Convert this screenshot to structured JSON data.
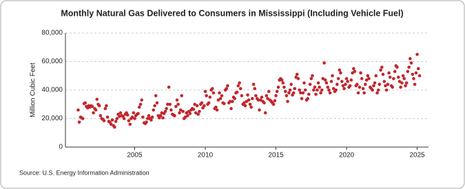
{
  "chart_data": {
    "type": "scatter",
    "title": "Monthly Natural Gas Delivered to Consumers in Mississippi (Including Vehicle Fuel)",
    "y_label": "Million Cubic Feet",
    "source": "Source: U.S. Energy Information Administration",
    "color": "#c1272d",
    "grid": true,
    "xlim": [
      2000.1,
      2025.8
    ],
    "xticks": [
      2005,
      2010,
      2015,
      2020,
      2025
    ],
    "ylim": [
      0,
      80000
    ],
    "yticks": [
      0,
      {
        "value": 20000,
        "label": "20,000"
      },
      {
        "value": 40000,
        "label": "40,000"
      },
      {
        "value": 60000,
        "label": "60,000"
      },
      {
        "value": 80000,
        "label": "80,000"
      }
    ],
    "x": [
      2001,
      2001.08,
      2001.17,
      2001.25,
      2001.33,
      2001.42,
      2001.5,
      2001.58,
      2001.67,
      2001.75,
      2001.83,
      2001.92,
      2002,
      2002.08,
      2002.17,
      2002.25,
      2002.33,
      2002.42,
      2002.5,
      2002.58,
      2002.67,
      2002.75,
      2002.83,
      2002.92,
      2003,
      2003.08,
      2003.17,
      2003.25,
      2003.33,
      2003.42,
      2003.5,
      2003.58,
      2003.67,
      2003.75,
      2003.83,
      2003.92,
      2004,
      2004.08,
      2004.17,
      2004.25,
      2004.33,
      2004.42,
      2004.5,
      2004.58,
      2004.67,
      2004.75,
      2004.83,
      2004.92,
      2005,
      2005.08,
      2005.17,
      2005.25,
      2005.33,
      2005.42,
      2005.5,
      2005.58,
      2005.67,
      2005.75,
      2005.83,
      2005.92,
      2006,
      2006.08,
      2006.17,
      2006.25,
      2006.33,
      2006.42,
      2006.5,
      2006.58,
      2006.67,
      2006.75,
      2006.83,
      2006.92,
      2007,
      2007.08,
      2007.17,
      2007.25,
      2007.33,
      2007.42,
      2007.5,
      2007.58,
      2007.67,
      2007.75,
      2007.83,
      2007.92,
      2008,
      2008.08,
      2008.17,
      2008.25,
      2008.33,
      2008.42,
      2008.5,
      2008.58,
      2008.67,
      2008.75,
      2008.83,
      2008.92,
      2009,
      2009.08,
      2009.17,
      2009.25,
      2009.33,
      2009.42,
      2009.5,
      2009.58,
      2009.67,
      2009.75,
      2009.83,
      2009.92,
      2010,
      2010.08,
      2010.17,
      2010.25,
      2010.33,
      2010.42,
      2010.5,
      2010.58,
      2010.67,
      2010.75,
      2010.83,
      2010.92,
      2011,
      2011.08,
      2011.17,
      2011.25,
      2011.33,
      2011.42,
      2011.5,
      2011.58,
      2011.67,
      2011.75,
      2011.83,
      2011.92,
      2012,
      2012.08,
      2012.17,
      2012.25,
      2012.33,
      2012.42,
      2012.5,
      2012.58,
      2012.67,
      2012.75,
      2012.83,
      2012.92,
      2013,
      2013.08,
      2013.17,
      2013.25,
      2013.33,
      2013.42,
      2013.5,
      2013.58,
      2013.67,
      2013.75,
      2013.83,
      2013.92,
      2014,
      2014.08,
      2014.17,
      2014.25,
      2014.33,
      2014.42,
      2014.5,
      2014.58,
      2014.67,
      2014.75,
      2014.83,
      2014.92,
      2015,
      2015.08,
      2015.17,
      2015.25,
      2015.33,
      2015.42,
      2015.5,
      2015.58,
      2015.67,
      2015.75,
      2015.83,
      2015.92,
      2016,
      2016.08,
      2016.17,
      2016.25,
      2016.33,
      2016.42,
      2016.5,
      2016.58,
      2016.67,
      2016.75,
      2016.83,
      2016.92,
      2017,
      2017.08,
      2017.17,
      2017.25,
      2017.33,
      2017.42,
      2017.5,
      2017.58,
      2017.67,
      2017.75,
      2017.83,
      2017.92,
      2018,
      2018.08,
      2018.17,
      2018.25,
      2018.33,
      2018.42,
      2018.5,
      2018.58,
      2018.67,
      2018.75,
      2018.83,
      2018.92,
      2019,
      2019.08,
      2019.17,
      2019.25,
      2019.33,
      2019.42,
      2019.5,
      2019.58,
      2019.67,
      2019.75,
      2019.83,
      2019.92,
      2020,
      2020.08,
      2020.17,
      2020.25,
      2020.33,
      2020.42,
      2020.5,
      2020.58,
      2020.67,
      2020.75,
      2020.83,
      2020.92,
      2021,
      2021.08,
      2021.17,
      2021.25,
      2021.33,
      2021.42,
      2021.5,
      2021.58,
      2021.67,
      2021.75,
      2021.83,
      2021.92,
      2022,
      2022.08,
      2022.17,
      2022.25,
      2022.33,
      2022.42,
      2022.5,
      2022.58,
      2022.67,
      2022.75,
      2022.83,
      2022.92,
      2023,
      2023.08,
      2023.17,
      2023.25,
      2023.33,
      2023.42,
      2023.5,
      2023.58,
      2023.67,
      2023.75,
      2023.83,
      2023.92,
      2024,
      2024.08,
      2024.17,
      2024.25,
      2024.33,
      2024.42,
      2024.5,
      2024.58,
      2024.67,
      2024.75,
      2024.83,
      2024.92,
      2025,
      2025.08,
      2025.17
    ],
    "values": [
      26000,
      17500,
      21000,
      20500,
      20000,
      30500,
      31000,
      28500,
      27500,
      29000,
      28000,
      29000,
      28500,
      24000,
      27000,
      26000,
      33500,
      30000,
      29000,
      22000,
      20000,
      19500,
      18500,
      27000,
      29000,
      21000,
      18000,
      17500,
      16000,
      19000,
      15000,
      14000,
      18000,
      20000,
      23000,
      21500,
      24000,
      22000,
      21500,
      20000,
      23000,
      24000,
      22500,
      18500,
      16000,
      20000,
      21000,
      24000,
      20000,
      22000,
      23000,
      23500,
      28000,
      30000,
      33000,
      21000,
      17000,
      16500,
      17500,
      20000,
      22000,
      20000,
      19000,
      21000,
      26000,
      29000,
      36000,
      31000,
      22000,
      20500,
      22000,
      24000,
      20500,
      23500,
      25000,
      27000,
      30000,
      42000,
      30000,
      26000,
      23000,
      22500,
      22000,
      28500,
      33000,
      30000,
      24000,
      26000,
      36000,
      25000,
      20000,
      21000,
      24000,
      22000,
      25000,
      23500,
      26000,
      27000,
      26500,
      30000,
      24000,
      29000,
      23000,
      25000,
      30000,
      31000,
      27500,
      29000,
      39000,
      36000,
      30000,
      31000,
      35000,
      40000,
      41000,
      38000,
      27000,
      28000,
      26000,
      33000,
      38000,
      34000,
      36000,
      31000,
      30500,
      40000,
      41000,
      43000,
      31000,
      32000,
      27000,
      32000,
      35000,
      34000,
      38000,
      38500,
      43000,
      45000,
      41000,
      36000,
      30000,
      31000,
      29000,
      32000,
      36500,
      33000,
      30000,
      28000,
      34000,
      44000,
      41000,
      36000,
      34000,
      33000,
      26000,
      33000,
      35000,
      32000,
      31000,
      24000,
      36000,
      34000,
      39000,
      33000,
      32000,
      31000,
      30000,
      32500,
      36000,
      39000,
      42000,
      47000,
      48000,
      47000,
      45000,
      42000,
      39000,
      36000,
      32000,
      38000,
      40000,
      44000,
      36500,
      38000,
      41000,
      49000,
      51000,
      48000,
      40000,
      38000,
      34000,
      38000,
      45000,
      40000,
      33000,
      34000,
      37000,
      44000,
      48000,
      50000,
      40000,
      42000,
      37000,
      40000,
      45000,
      42000,
      38000,
      40000,
      48000,
      59000,
      47000,
      45000,
      42000,
      40000,
      38000,
      46000,
      50000,
      41000,
      39000,
      40000,
      44000,
      48000,
      54000,
      52000,
      46000,
      43000,
      41000,
      44000,
      48000,
      46000,
      42000,
      43000,
      47000,
      52000,
      55000,
      53000,
      43000,
      44000,
      38000,
      42000,
      52000,
      48000,
      41000,
      38000,
      44000,
      47000,
      50000,
      48000,
      42000,
      41000,
      40000,
      43000,
      45000,
      50000,
      38000,
      40000,
      44000,
      54000,
      56000,
      51000,
      46000,
      43000,
      40000,
      44000,
      52000,
      49000,
      43000,
      42000,
      48000,
      53000,
      57000,
      56000,
      49000,
      46000,
      42000,
      45000,
      50000,
      48000,
      43000,
      45000,
      53000,
      56000,
      62000,
      59000,
      51000,
      48000,
      44000,
      52000,
      65000,
      55000,
      50000
    ]
  }
}
